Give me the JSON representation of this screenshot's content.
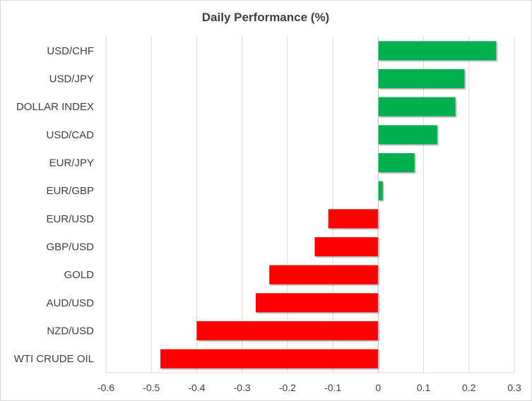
{
  "chart_data": {
    "type": "bar",
    "orientation": "horizontal",
    "title": "Daily Performance  (%)",
    "xlabel": "",
    "ylabel": "",
    "categories": [
      "USD/CHF",
      "USD/JPY",
      "DOLLAR INDEX",
      "USD/CAD",
      "EUR/JPY",
      "EUR/GBP",
      "EUR/USD",
      "GBP/USD",
      "GOLD",
      "AUD/USD",
      "NZD/USD",
      "WTI CRUDE OIL"
    ],
    "values": [
      0.26,
      0.19,
      0.17,
      0.13,
      0.08,
      0.01,
      -0.11,
      -0.14,
      -0.24,
      -0.27,
      -0.4,
      -0.48
    ],
    "xlim": [
      -0.6,
      0.3
    ],
    "xticks": [
      -0.6,
      -0.5,
      -0.4,
      -0.3,
      -0.2,
      -0.1,
      0,
      0.1,
      0.2,
      0.3
    ],
    "xtick_labels": [
      "-0.6",
      "-0.5",
      "-0.4",
      "-0.3",
      "-0.2",
      "-0.1",
      "0",
      "0.1",
      "0.2",
      "0.3"
    ],
    "grid": "vertical",
    "legend": "none",
    "colors": {
      "positive": "#00b050",
      "negative": "#ff0000",
      "grid": "#d9d9d9",
      "text": "#404040"
    }
  }
}
